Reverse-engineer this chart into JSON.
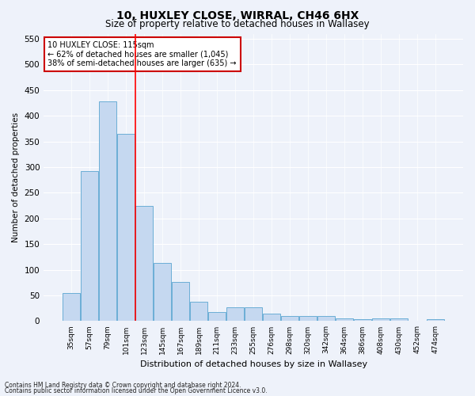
{
  "title": "10, HUXLEY CLOSE, WIRRAL, CH46 6HX",
  "subtitle": "Size of property relative to detached houses in Wallasey",
  "xlabel": "Distribution of detached houses by size in Wallasey",
  "ylabel": "Number of detached properties",
  "categories": [
    "35sqm",
    "57sqm",
    "79sqm",
    "101sqm",
    "123sqm",
    "145sqm",
    "167sqm",
    "189sqm",
    "211sqm",
    "233sqm",
    "255sqm",
    "276sqm",
    "298sqm",
    "320sqm",
    "342sqm",
    "364sqm",
    "386sqm",
    "408sqm",
    "430sqm",
    "452sqm",
    "474sqm"
  ],
  "values": [
    55,
    292,
    428,
    365,
    225,
    113,
    76,
    38,
    18,
    27,
    27,
    14,
    10,
    10,
    10,
    5,
    4,
    5,
    5,
    0,
    4
  ],
  "bar_color": "#c5d8f0",
  "bar_edge_color": "#6baed6",
  "property_line_x": 3.5,
  "property_sqm": 115,
  "pct_smaller": 62,
  "n_smaller": 1045,
  "pct_larger_semi": 38,
  "n_larger_semi": 635,
  "annotation_box_color": "#cc0000",
  "ylim": [
    0,
    560
  ],
  "yticks": [
    0,
    50,
    100,
    150,
    200,
    250,
    300,
    350,
    400,
    450,
    500,
    550
  ],
  "footnote1": "Contains HM Land Registry data © Crown copyright and database right 2024.",
  "footnote2": "Contains public sector information licensed under the Open Government Licence v3.0.",
  "background_color": "#eef2fa"
}
